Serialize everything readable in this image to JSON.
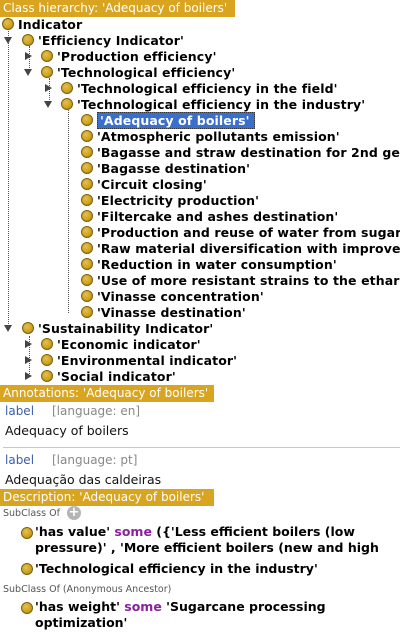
{
  "hierarchy": {
    "header": "Class hierarchy: 'Adequacy of boilers'",
    "root": "Indicator",
    "efficiency": "'Efficiency Indicator'",
    "production": "'Production efficiency'",
    "technological": "'Technological efficiency'",
    "tech_field": "'Technological efficiency in the field'",
    "tech_industry": "'Technological efficiency in the industry'",
    "industry_children": [
      "'Adequacy of boilers'",
      "'Atmospheric pollutants emission'",
      "'Bagasse and straw destination for 2nd ge",
      "'Bagasse destination'",
      "'Circuit closing'",
      "'Electricity production'",
      "'Filtercake and ashes destination'",
      "'Production and reuse of water from sugar",
      "'Raw material diversification with improved",
      "'Reduction in water consumption'",
      "'Use of more resistant strains to the ethar",
      "'Vinasse concentration'",
      "'Vinasse destination'"
    ],
    "sustainability": "'Sustainability Indicator'",
    "sustainability_children": [
      "'Economic indicator'",
      "'Environmental indicator'",
      "'Social indicator'"
    ]
  },
  "annotations": {
    "header": "Annotations: 'Adequacy of boilers'",
    "items": [
      {
        "label": "label",
        "language": "[language: en]",
        "value": "Adequacy of boilers"
      },
      {
        "label": "label",
        "language": "[language: pt]",
        "value": "Adequação das caldeiras"
      }
    ]
  },
  "description": {
    "header": "Description: 'Adequacy of boilers'",
    "subclass_of": "SubClass Of",
    "add_symbol": "+",
    "axiom1_prop": "'has value'",
    "axiom1_kw": "some",
    "axiom1_rest_line1": "({'Less efficient boilers (low",
    "axiom1_line2": "pressure)' , 'More efficient boilers (new and high",
    "axiom2": "'Technological efficiency in the industry'",
    "subclass_anon": "SubClass Of (Anonymous Ancestor)",
    "axiom3_prop": "'has weight'",
    "axiom3_kw": "some",
    "axiom3_rest_line1": "'Sugarcane processing",
    "axiom3_line2": "optimization'"
  }
}
